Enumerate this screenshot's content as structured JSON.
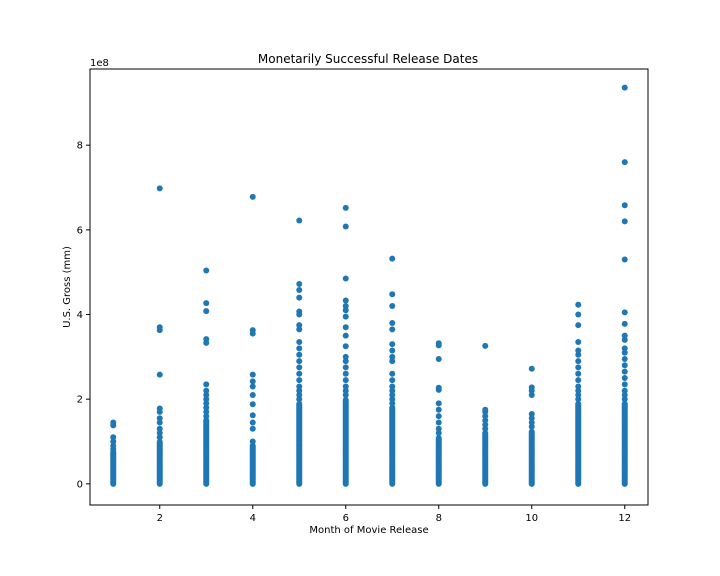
{
  "chart_data": {
    "type": "scatter",
    "title": "Monetarily Successful Release Dates",
    "xlabel": "Month of Movie Release",
    "ylabel": "U.S. Gross (mm)",
    "y_offset_label": "1e8",
    "xlim": [
      0.5,
      12.5
    ],
    "ylim": [
      -0.5,
      9.8
    ],
    "x_ticks": [
      2,
      4,
      6,
      8,
      10,
      12
    ],
    "y_ticks": [
      0,
      2,
      4,
      6,
      8
    ],
    "grid": false,
    "legend": "none",
    "point_color": "#1f77b4",
    "months": [
      {
        "x": 1,
        "dense_max": 0.75,
        "outliers": [
          0.82,
          0.9,
          1.0,
          1.1,
          1.38,
          1.45
        ]
      },
      {
        "x": 2,
        "dense_max": 1.0,
        "outliers": [
          1.1,
          1.2,
          1.3,
          1.45,
          1.55,
          1.7,
          1.78,
          2.58,
          3.63,
          3.7,
          6.98
        ]
      },
      {
        "x": 3,
        "dense_max": 1.5,
        "outliers": [
          1.6,
          1.7,
          1.8,
          1.9,
          2.0,
          2.1,
          2.2,
          2.35,
          3.33,
          3.42,
          4.08,
          4.27,
          5.04
        ]
      },
      {
        "x": 4,
        "dense_max": 0.9,
        "outliers": [
          1.0,
          1.3,
          1.45,
          1.62,
          1.88,
          2.1,
          2.3,
          2.42,
          2.58,
          3.55,
          3.63,
          6.78
        ]
      },
      {
        "x": 5,
        "dense_max": 1.9,
        "outliers": [
          2.0,
          2.1,
          2.2,
          2.3,
          2.45,
          2.6,
          2.75,
          2.9,
          3.05,
          3.2,
          3.35,
          3.65,
          3.75,
          4.0,
          4.07,
          4.4,
          4.58,
          4.72,
          6.22
        ]
      },
      {
        "x": 6,
        "dense_max": 2.0,
        "outliers": [
          2.1,
          2.2,
          2.3,
          2.45,
          2.6,
          2.75,
          2.9,
          3.0,
          3.25,
          3.5,
          3.7,
          3.95,
          4.1,
          4.2,
          4.33,
          4.85,
          6.08,
          6.52
        ]
      },
      {
        "x": 7,
        "dense_max": 1.8,
        "outliers": [
          1.9,
          2.0,
          2.1,
          2.2,
          2.3,
          2.45,
          2.6,
          2.9,
          3.0,
          3.15,
          3.3,
          3.65,
          3.8,
          4.2,
          4.48,
          5.32
        ]
      },
      {
        "x": 8,
        "dense_max": 1.1,
        "outliers": [
          1.2,
          1.3,
          1.45,
          1.6,
          1.75,
          1.9,
          2.22,
          2.27,
          2.95,
          3.27,
          3.32
        ]
      },
      {
        "x": 9,
        "dense_max": 1.2,
        "outliers": [
          1.3,
          1.4,
          1.5,
          1.6,
          1.7,
          1.75,
          3.26
        ]
      },
      {
        "x": 10,
        "dense_max": 1.25,
        "outliers": [
          1.35,
          1.45,
          1.55,
          1.65,
          2.1,
          2.2,
          2.28,
          2.72
        ]
      },
      {
        "x": 11,
        "dense_max": 1.9,
        "outliers": [
          2.0,
          2.1,
          2.2,
          2.3,
          2.45,
          2.6,
          2.75,
          2.9,
          3.05,
          3.15,
          3.35,
          3.75,
          4.0,
          4.23
        ]
      },
      {
        "x": 12,
        "dense_max": 1.9,
        "outliers": [
          2.0,
          2.1,
          2.2,
          2.35,
          2.5,
          2.65,
          2.8,
          2.95,
          3.1,
          3.2,
          3.4,
          3.5,
          3.78,
          4.05,
          5.3,
          6.2,
          6.58,
          7.6,
          9.36
        ]
      }
    ]
  }
}
